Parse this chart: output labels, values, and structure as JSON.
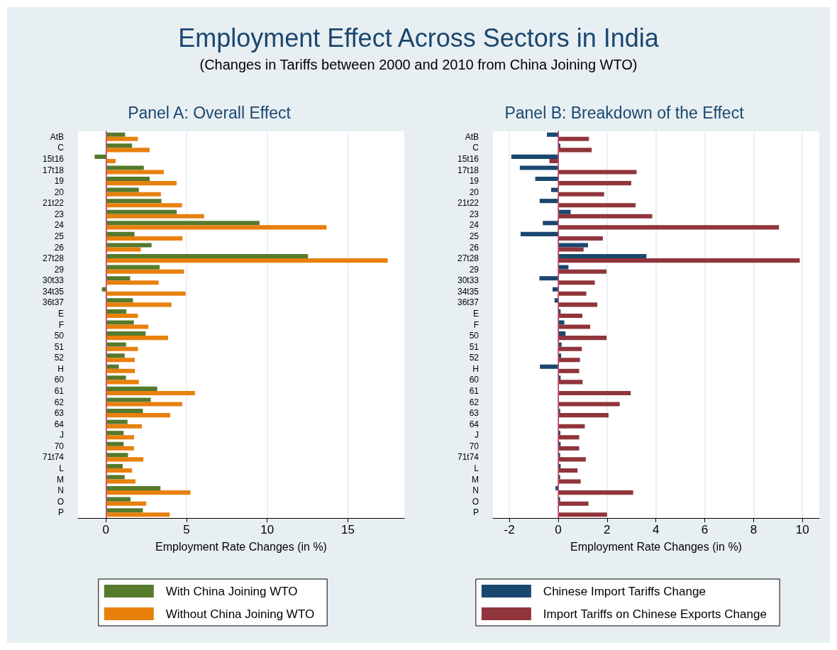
{
  "chart_data": [
    {
      "type": "bar",
      "orientation": "horizontal",
      "title": "Panel A: Overall Effect",
      "xlabel": "Employment Rate Changes (in %)",
      "annotations": [
        "Employment Effect Across Sectors in India",
        "(Changes in Tariffs between 2000 and 2010 from China Joining WTO)"
      ],
      "categories": [
        "AtB",
        "C",
        "15t16",
        "17t18",
        "19",
        "20",
        "21t22",
        "23",
        "24",
        "25",
        "26",
        "27t28",
        "29",
        "30t33",
        "34t35",
        "36t37",
        "E",
        "F",
        "50",
        "51",
        "52",
        "H",
        "60",
        "61",
        "62",
        "63",
        "64",
        "J",
        "70",
        "71t74",
        "L",
        "M",
        "N",
        "O",
        "P"
      ],
      "series": [
        {
          "name": "With China Joining WTO",
          "color": "#557a2c",
          "values": [
            1.19,
            1.62,
            -0.7,
            2.35,
            2.71,
            2.04,
            3.44,
            4.39,
            9.52,
            1.77,
            2.83,
            12.53,
            3.33,
            1.5,
            -0.25,
            1.68,
            1.26,
            1.73,
            2.46,
            1.25,
            1.16,
            0.8,
            1.24,
            3.18,
            2.78,
            2.29,
            1.34,
            1.1,
            1.1,
            1.37,
            1.04,
            1.16,
            3.38,
            1.52,
            2.29
          ]
        },
        {
          "name": "Without China Joining WTO",
          "color": "#e8800c",
          "values": [
            1.98,
            2.71,
            0.6,
            3.59,
            4.38,
            3.41,
            4.72,
            6.09,
            13.68,
            4.75,
            2.16,
            17.47,
            4.84,
            3.27,
            4.94,
            4.06,
            1.98,
            2.63,
            3.85,
            1.98,
            1.79,
            1.79,
            2.04,
            5.52,
            4.73,
            3.99,
            2.23,
            1.74,
            1.74,
            2.32,
            1.62,
            1.83,
            5.24,
            2.5,
            3.96
          ]
        }
      ],
      "xlim": [
        -1.73,
        18.5
      ],
      "xticks": [
        0,
        5,
        10,
        15
      ],
      "grid": "x",
      "legend": "bottom",
      "ref_lines": [
        {
          "axis": "x",
          "value": 0,
          "color": "#d0507a"
        }
      ]
    },
    {
      "type": "bar",
      "orientation": "horizontal",
      "title": "Panel B: Breakdown of the Effect",
      "xlabel": "Employment Rate Changes (in %)",
      "categories": [
        "AtB",
        "C",
        "15t16",
        "17t18",
        "19",
        "20",
        "21t22",
        "23",
        "24",
        "25",
        "26",
        "27t28",
        "29",
        "30t33",
        "34t35",
        "36t37",
        "E",
        "F",
        "50",
        "51",
        "52",
        "H",
        "60",
        "61",
        "62",
        "63",
        "64",
        "J",
        "70",
        "71t74",
        "L",
        "M",
        "N",
        "O",
        "P"
      ],
      "series": [
        {
          "name": "Chinese Import Tariffs Change",
          "color": "#1a476f",
          "values": [
            -0.46,
            0.09,
            -1.92,
            -1.57,
            -0.94,
            -0.29,
            -0.76,
            0.51,
            -0.63,
            -1.54,
            1.22,
            3.61,
            0.42,
            -0.77,
            -0.23,
            -0.15,
            0.1,
            0.25,
            0.3,
            0.14,
            0.12,
            -0.75,
            0.1,
            null,
            null,
            0.08,
            null,
            0.09,
            0.1,
            0.08,
            0.1,
            0.08,
            -0.11,
            0.08,
            null
          ]
        },
        {
          "name": "Import Tariffs on Chinese Exports Change",
          "color": "#90353b",
          "values": [
            1.26,
            1.37,
            -0.36,
            3.21,
            2.99,
            1.88,
            3.17,
            3.85,
            9.04,
            1.83,
            1.04,
            9.89,
            1.98,
            1.5,
            1.15,
            1.6,
            0.99,
            1.31,
            1.98,
            0.97,
            0.89,
            0.86,
            1.0,
            2.97,
            2.52,
            2.06,
            1.09,
            0.86,
            0.86,
            1.13,
            0.79,
            0.92,
            3.07,
            1.24,
            2.0
          ]
        }
      ],
      "xlim": [
        -2.67,
        10.69
      ],
      "xticks": [
        -2,
        0,
        2,
        4,
        6,
        8,
        10
      ],
      "grid": "x",
      "legend": "bottom",
      "ref_lines": [
        {
          "axis": "x",
          "value": 0,
          "color": "#d0507a"
        }
      ]
    }
  ]
}
